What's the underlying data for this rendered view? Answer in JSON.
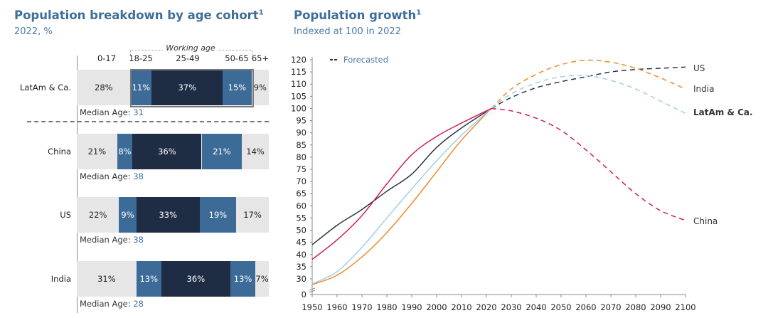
{
  "left": {
    "title": "Population breakdown by age cohort",
    "title_sup": "1",
    "subtitle": "2022, %",
    "working_age_label": "Working age",
    "columns": [
      "0-17",
      "18-25",
      "25-49",
      "50-65",
      "65+"
    ],
    "median_label": "Median Age: ",
    "rows": [
      {
        "name": "LatAm & Ca.",
        "values": [
          28,
          11,
          37,
          15,
          9
        ],
        "labels": [
          "28%",
          "11%",
          "37%",
          "15%",
          "9%"
        ],
        "median": "31",
        "highlighted": true
      },
      {
        "name": "China",
        "values": [
          21,
          8,
          36,
          21,
          14
        ],
        "labels": [
          "21%",
          "8%",
          "36%",
          "21%",
          "14%"
        ],
        "median": "38"
      },
      {
        "name": "US",
        "values": [
          22,
          9,
          33,
          19,
          17
        ],
        "labels": [
          "22%",
          "9%",
          "33%",
          "19%",
          "17%"
        ],
        "median": "38"
      },
      {
        "name": "India",
        "values": [
          31,
          13,
          36,
          13,
          7
        ],
        "labels": [
          "31%",
          "13%",
          "36%",
          "13%",
          "7%"
        ],
        "median": "28"
      }
    ],
    "colors": {
      "light": "#e6e6e6",
      "mid": "#3d6b98",
      "dark": "#1e2c44"
    }
  },
  "right": {
    "title": "Population growth",
    "title_sup": "1",
    "subtitle": "Indexed at 100 in 2022"
  },
  "chart_data": {
    "type": "line",
    "title": "Population growth",
    "subtitle": "Indexed at 100 in 2022",
    "xlabel": "",
    "ylabel": "",
    "xlim": [
      1950,
      2100
    ],
    "ylim": [
      0,
      120
    ],
    "x_ticks": [
      1950,
      1960,
      1970,
      1980,
      1990,
      2000,
      2010,
      2020,
      2030,
      2040,
      2050,
      2060,
      2070,
      2080,
      2090,
      2100
    ],
    "y_ticks": [
      0,
      30,
      35,
      40,
      45,
      50,
      55,
      60,
      65,
      70,
      75,
      80,
      85,
      90,
      95,
      100,
      105,
      110,
      115,
      120
    ],
    "axis_break": "between 0 and 30",
    "forecast_from": 2022,
    "legend": {
      "entries": [
        "Forecasted"
      ],
      "placement": "top-left"
    },
    "x": [
      1950,
      1960,
      1970,
      1980,
      1990,
      2000,
      2010,
      2022,
      2030,
      2040,
      2050,
      2060,
      2070,
      2080,
      2090,
      2100
    ],
    "series": [
      {
        "name": "US",
        "color": "#2b3445",
        "values": [
          44,
          52,
          58.5,
          66,
          73,
          84,
          92,
          100,
          104.5,
          108.5,
          111,
          113,
          115,
          116,
          116.5,
          117
        ]
      },
      {
        "name": "India",
        "color": "#f08a2c",
        "values": [
          27,
          31.5,
          39,
          49,
          61,
          74,
          87,
          100,
          108,
          114,
          118,
          119.8,
          119,
          116.5,
          112.5,
          108
        ]
      },
      {
        "name": "LatAm & Ca.",
        "color": "#9fd0e8",
        "values": [
          27.5,
          33,
          43,
          55,
          67,
          78.5,
          89,
          100,
          106,
          110.5,
          113,
          113.5,
          111.5,
          108,
          103,
          98
        ]
      },
      {
        "name": "China",
        "color": "#d01f55",
        "values": [
          38,
          46,
          56,
          69,
          81,
          88.5,
          94,
          100,
          99,
          96,
          91,
          83,
          74,
          65,
          58,
          54
        ]
      }
    ]
  }
}
